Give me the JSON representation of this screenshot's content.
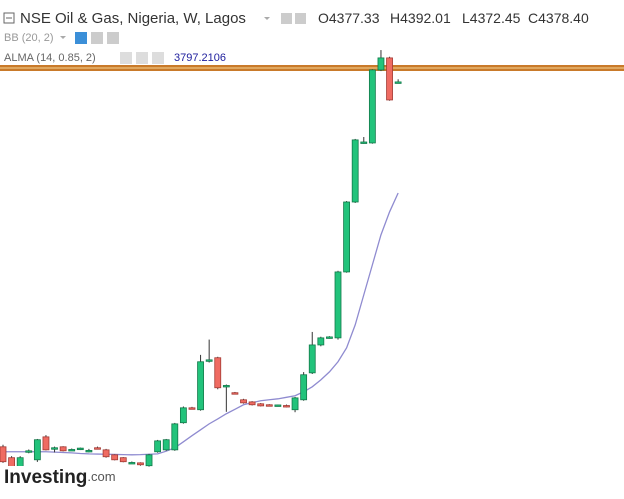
{
  "header": {
    "title": "NSE Oil & Gas, Nigeria, W, Lagos",
    "ohlc": [
      {
        "label": "O",
        "value": 4377.33
      },
      {
        "label": "H",
        "value": 4392.01
      },
      {
        "label": "L",
        "value": 4372.45
      },
      {
        "label": "C",
        "value": {
          "value": 4378.4,
          "label": "4378.40"
        }
      }
    ]
  },
  "indicators": [
    {
      "name": "BB (20, 2)"
    },
    {
      "name": "ALMA (14, 0.85, 2)",
      "value": 3797.2106
    }
  ],
  "logo": {
    "brand": "Investing",
    "suffix": ".com"
  },
  "chart_data": {
    "type": "candlestick",
    "ylim": [
      2222,
      4807
    ],
    "up_color": "#22c37b",
    "down_color": "#ef6b62",
    "open": [
      2469,
      2412,
      2349,
      2443,
      2401,
      2521,
      2459,
      2469,
      2453,
      2459,
      2448,
      2464,
      2453,
      2427,
      2412,
      2385,
      2385,
      2370,
      2443,
      2453,
      2453,
      2595,
      2673,
      2663,
      2920,
      2935,
      2788,
      2752,
      2715,
      2704,
      2694,
      2689,
      2686,
      2685,
      2663,
      2715,
      2856,
      3002,
      3040,
      3039,
      3384,
      3750,
      4059,
      4059,
      4441,
      4504,
      4377.33
    ],
    "high": [
      2480,
      2420,
      2420,
      2455,
      2510,
      2530,
      2470,
      2472,
      2460,
      2465,
      2458,
      2470,
      2458,
      2430,
      2415,
      2392,
      2388,
      2432,
      2505,
      2510,
      2594,
      2680,
      2678,
      2950,
      3030,
      2940,
      2795,
      2756,
      2720,
      2708,
      2698,
      2692,
      2690,
      2690,
      2730,
      2860,
      3070,
      3045,
      3048,
      3390,
      3755,
      4080,
      4090,
      4445,
      4545,
      4510,
      4392.01
    ],
    "low": [
      2385,
      2330,
      2340,
      2435,
      2390,
      2450,
      2440,
      2445,
      2448,
      2452,
      2440,
      2455,
      2412,
      2398,
      2388,
      2380,
      2370,
      2365,
      2438,
      2448,
      2448,
      2590,
      2665,
      2658,
      2910,
      2770,
      2652,
      2745,
      2695,
      2685,
      2680,
      2684,
      2680,
      2675,
      2650,
      2710,
      2850,
      2995,
      3035,
      3030,
      3380,
      3745,
      4055,
      4055,
      4435,
      4280,
      4372.45
    ],
    "close": [
      2391,
      2338,
      2412,
      2448,
      2506,
      2453,
      2464,
      2448,
      2455,
      2462,
      2450,
      2462,
      2417,
      2401,
      2391,
      2387,
      2375,
      2427,
      2500,
      2506,
      2589,
      2673,
      2670,
      2914,
      2924,
      2778,
      2790,
      2749,
      2699,
      2689,
      2683,
      2687,
      2688,
      2683,
      2725,
      2846,
      3002,
      3039,
      3044,
      3384,
      3750,
      4075,
      4064,
      4441,
      4504,
      4284,
      4378.4
    ],
    "alma": {
      "color": "#8f8bd0",
      "values": [
        2443,
        2443,
        2443,
        2443,
        2443,
        2443,
        2441,
        2439,
        2437,
        2434,
        2432,
        2431,
        2430,
        2429,
        2428,
        2427,
        2428,
        2430,
        2432,
        2446,
        2464,
        2495,
        2527,
        2558,
        2589,
        2615,
        2642,
        2665,
        2689,
        2700,
        2710,
        2715,
        2720,
        2728,
        2736,
        2757,
        2783,
        2819,
        2861,
        2914,
        2987,
        3107,
        3264,
        3421,
        3578,
        3698,
        3797.2106
      ]
    },
    "hline": {
      "value": 4451,
      "color": "#c97a2a"
    }
  }
}
